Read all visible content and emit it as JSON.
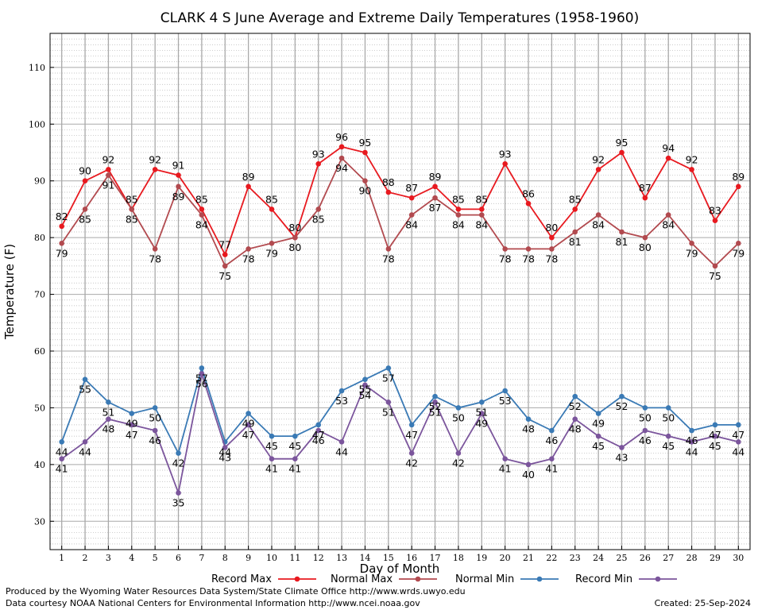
{
  "chart_data": {
    "type": "line",
    "title": "CLARK 4 S June Average and Extreme Daily Temperatures (1958-1960)",
    "xlabel": "Day of Month",
    "ylabel": "Temperature (F)",
    "xlim": [
      0.5,
      30.5
    ],
    "ylim": [
      25,
      116
    ],
    "x": [
      1,
      2,
      3,
      4,
      5,
      6,
      7,
      8,
      9,
      10,
      11,
      12,
      13,
      14,
      15,
      16,
      17,
      18,
      19,
      20,
      21,
      22,
      23,
      24,
      25,
      26,
      27,
      28,
      29,
      30
    ],
    "y_ticks": [
      30,
      40,
      50,
      60,
      70,
      80,
      90,
      100,
      110
    ],
    "grid": true,
    "legend_position": "bottom",
    "series": [
      {
        "name": "Record Max",
        "color": "#e8191f",
        "values": [
          82,
          90,
          92,
          85,
          92,
          91,
          85,
          77,
          89,
          85,
          80,
          93,
          96,
          95,
          88,
          87,
          89,
          85,
          85,
          93,
          86,
          80,
          85,
          92,
          95,
          87,
          94,
          92,
          83,
          89
        ],
        "label_side": "above"
      },
      {
        "name": "Normal Max",
        "color": "#b24a4f",
        "values": [
          79,
          85,
          91,
          85,
          78,
          89,
          84,
          75,
          78,
          79,
          80,
          85,
          94,
          90,
          78,
          84,
          87,
          84,
          84,
          78,
          78,
          78,
          81,
          84,
          81,
          80,
          84,
          79,
          75,
          79
        ],
        "label_side": "below"
      },
      {
        "name": "Normal Min",
        "color": "#3a7ab5",
        "values": [
          44,
          55,
          51,
          49,
          50,
          42,
          57,
          44,
          49,
          45,
          45,
          47,
          53,
          55,
          57,
          47,
          52,
          50,
          51,
          53,
          48,
          46,
          52,
          49,
          52,
          50,
          50,
          46,
          47,
          47
        ],
        "label_side": "below"
      },
      {
        "name": "Record Min",
        "color": "#7b559c",
        "values": [
          41,
          44,
          48,
          47,
          46,
          35,
          56,
          43,
          47,
          41,
          41,
          46,
          44,
          54,
          51,
          42,
          51,
          42,
          49,
          41,
          40,
          41,
          48,
          45,
          43,
          46,
          45,
          44,
          45,
          44
        ],
        "label_side": "below"
      }
    ]
  },
  "footer": {
    "produced_by": "Produced by the Wyoming Water Resources Data System/State Climate Office http://www.wrds.uwyo.edu",
    "courtesy": "Data courtesy NOAA National Centers for Environmental Information http://www.ncei.noaa.gov",
    "created": "Created:  25-Sep-2024"
  }
}
